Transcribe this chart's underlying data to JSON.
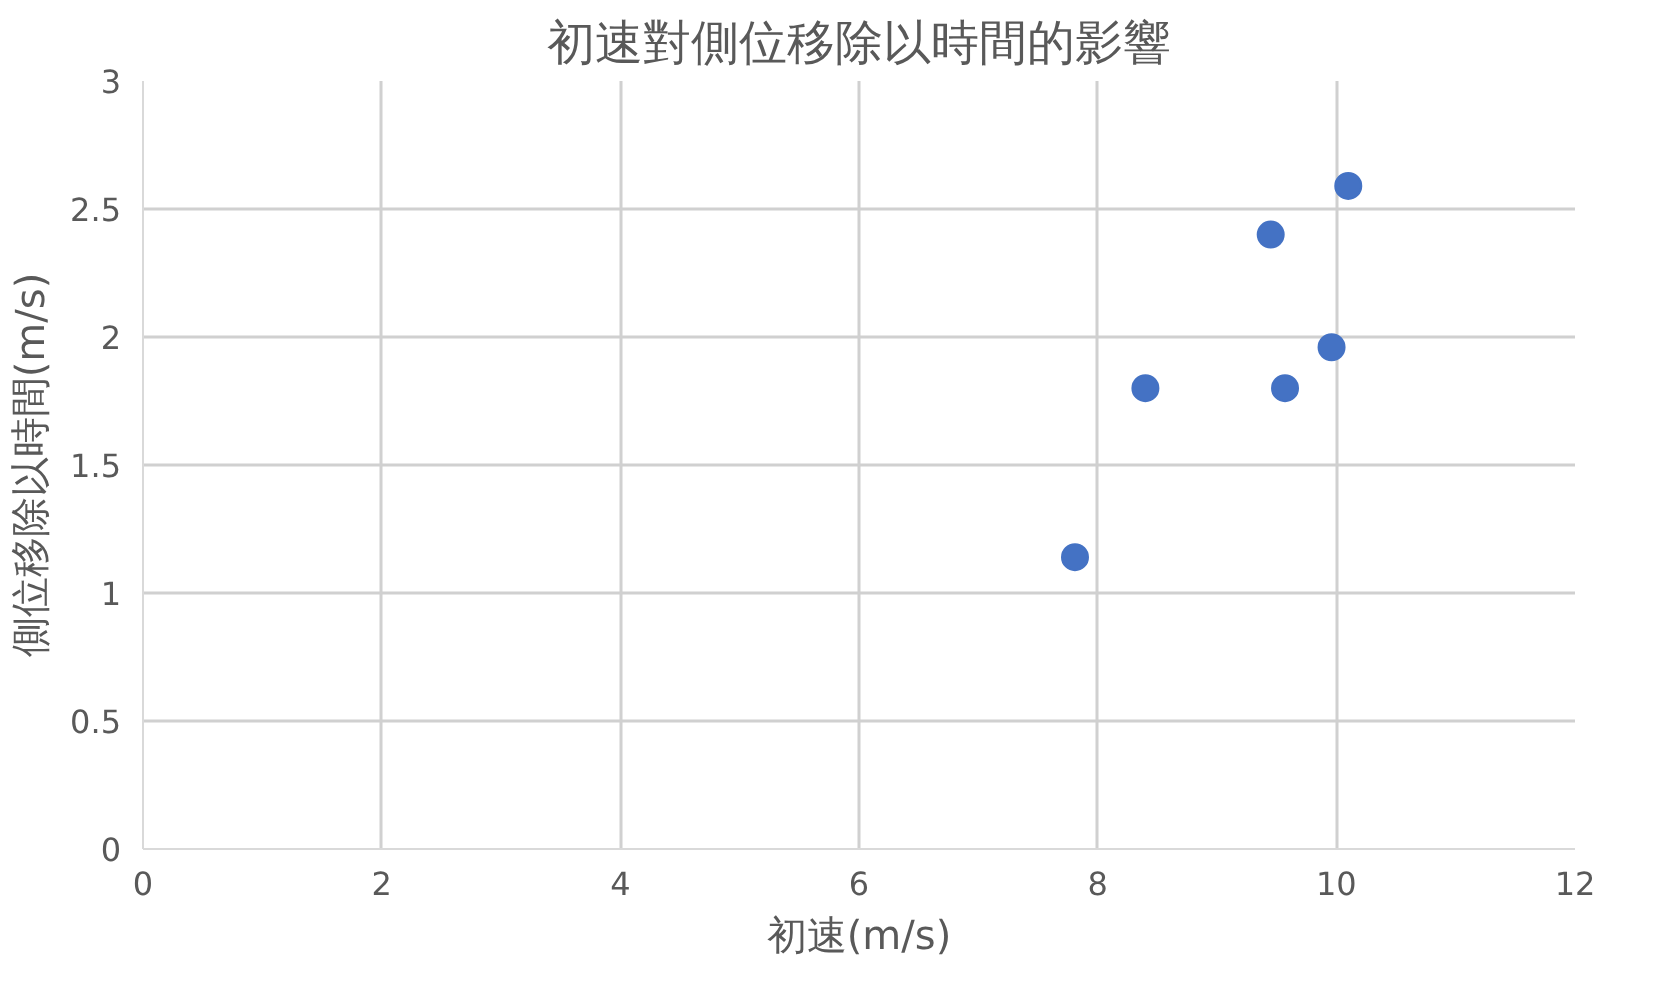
{
  "chart_data": {
    "type": "scatter",
    "title": "初速對側位移除以時間的影響",
    "xlabel": "初速(m/s)",
    "ylabel": "側位移除以時間(m/s)",
    "x": [
      7.81,
      8.4,
      9.45,
      9.57,
      9.96,
      10.1
    ],
    "series": [
      {
        "color": "#4472c4",
        "values": [
          1.14,
          1.8,
          2.4,
          1.8,
          1.96,
          2.59
        ]
      }
    ],
    "xlim": [
      0,
      12
    ],
    "xticks": [
      0,
      2,
      4,
      6,
      8,
      10,
      12
    ],
    "ylim": [
      0,
      3
    ],
    "yticks": [
      0,
      0.5,
      1,
      1.5,
      2,
      2.5,
      3
    ],
    "grid": true,
    "marker": "circle"
  }
}
